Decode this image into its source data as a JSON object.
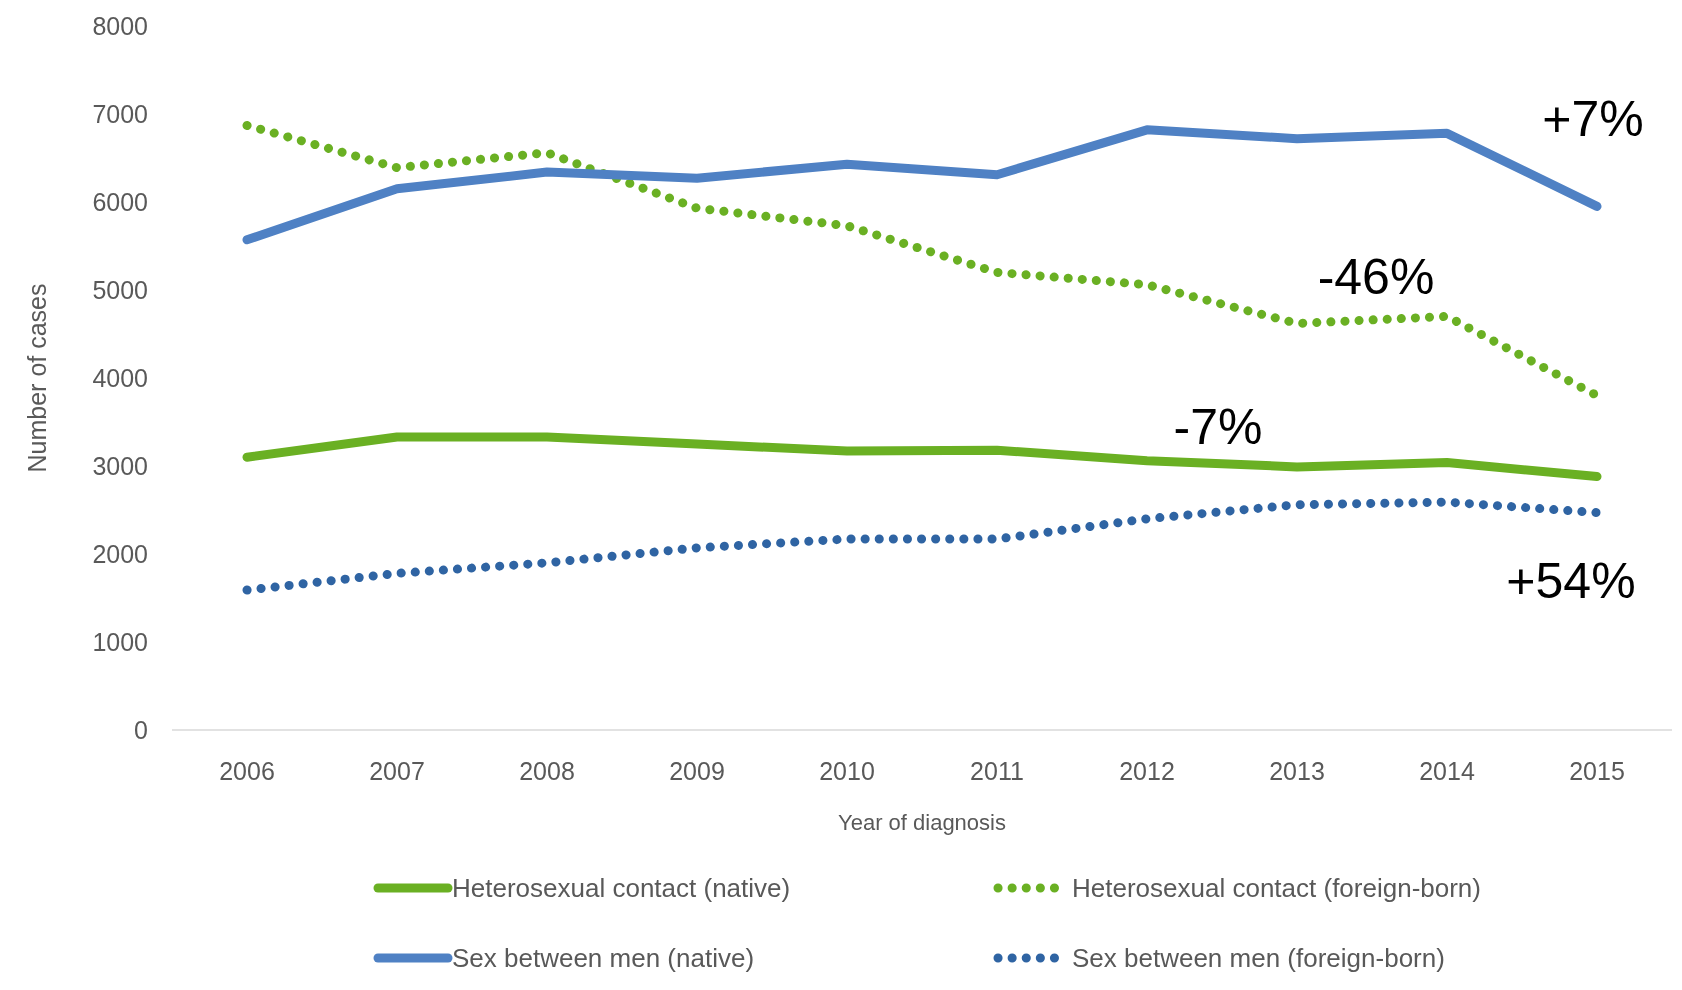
{
  "chart_data": {
    "type": "line",
    "xlabel": "Year of diagnosis",
    "ylabel": "Number of cases",
    "categories": [
      "2006",
      "2007",
      "2008",
      "2009",
      "2010",
      "2011",
      "2012",
      "2013",
      "2014",
      "2015"
    ],
    "ylim": [
      0,
      8000
    ],
    "yticks": [
      0,
      1000,
      2000,
      3000,
      4000,
      5000,
      6000,
      7000,
      8000
    ],
    "grid": false,
    "legend": "bottom",
    "marker": "none",
    "series": [
      {
        "name": "Heterosexual contact (native)",
        "color": "#6ab023",
        "line_style": "solid",
        "values": [
          3100,
          3330,
          3330,
          3250,
          3170,
          3180,
          3060,
          2990,
          3040,
          2880
        ]
      },
      {
        "name": "Heterosexual contact (foreign-born)",
        "color": "#6ab023",
        "line_style": "dotted",
        "values": [
          6870,
          6390,
          6560,
          5930,
          5730,
          5200,
          5060,
          4620,
          4700,
          3800
        ]
      },
      {
        "name": "Sex between men (native)",
        "color": "#4f81c4",
        "line_style": "solid",
        "values": [
          5570,
          6150,
          6340,
          6270,
          6430,
          6310,
          6820,
          6720,
          6780,
          5950
        ]
      },
      {
        "name": "Sex between men (foreign-born)",
        "color": "#2f64a3",
        "line_style": "dotted",
        "values": [
          1590,
          1780,
          1900,
          2070,
          2170,
          2170,
          2400,
          2560,
          2590,
          2470
        ]
      }
    ],
    "annotations": [
      "+7%",
      "-46%",
      "-7%",
      "+54%"
    ]
  }
}
